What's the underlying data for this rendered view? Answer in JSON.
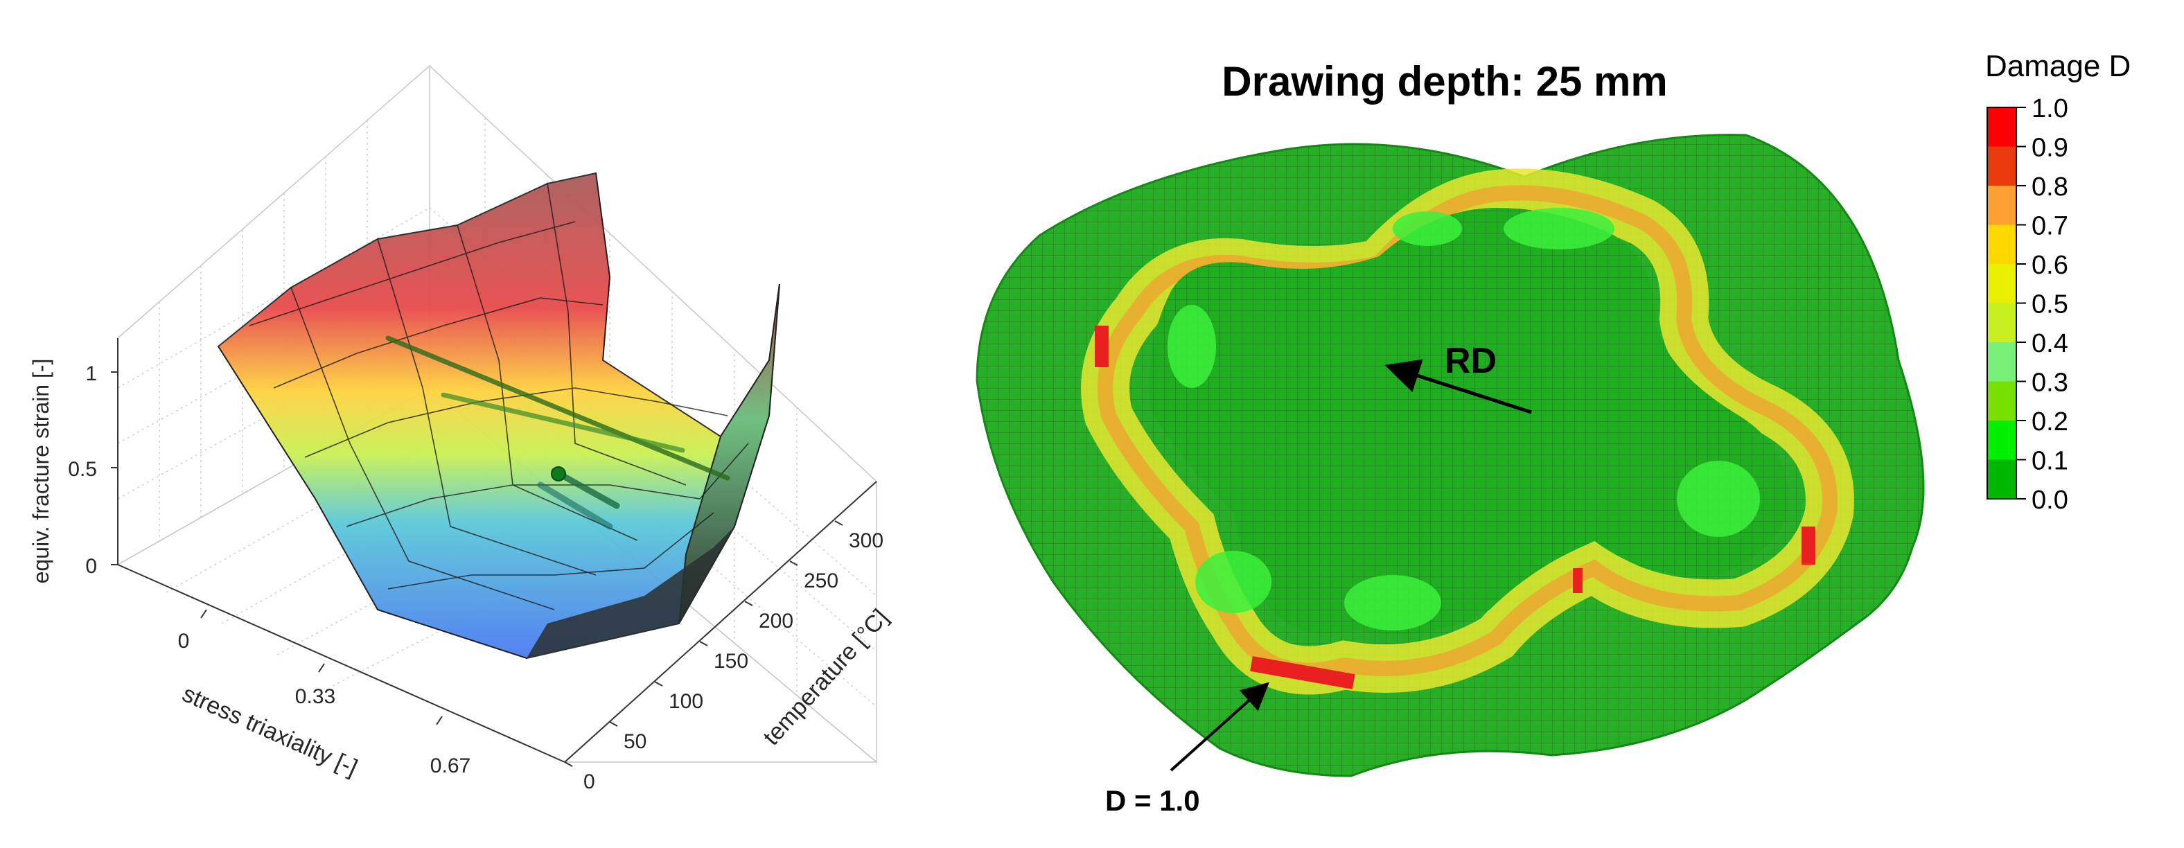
{
  "left_plot": {
    "z_axis_label": "equiv. fracture strain [-]",
    "z_ticks": [
      "0",
      "0.5",
      "1"
    ],
    "x_axis_label": "stress triaxiality [-]",
    "x_ticks": [
      "0",
      "0.33",
      "0.67"
    ],
    "y_axis_label": "temperature [°C]",
    "y_ticks": [
      "0",
      "50",
      "100",
      "150",
      "200",
      "250",
      "300"
    ]
  },
  "right_plot": {
    "title": "Drawing depth: 25 mm",
    "rd_label": "RD",
    "d_label": "D = 1.0"
  },
  "colorbar": {
    "title": "Damage D",
    "labels": [
      "1.0",
      "0.9",
      "0.8",
      "0.7",
      "0.6",
      "0.5",
      "0.4",
      "0.3",
      "0.2",
      "0.1",
      "0.0"
    ],
    "colors": [
      "#ff0000",
      "#e83a0c",
      "#ffa030",
      "#ffd800",
      "#e8f000",
      "#c8f020",
      "#78f078",
      "#78e000",
      "#00f000",
      "#00b800"
    ]
  }
}
